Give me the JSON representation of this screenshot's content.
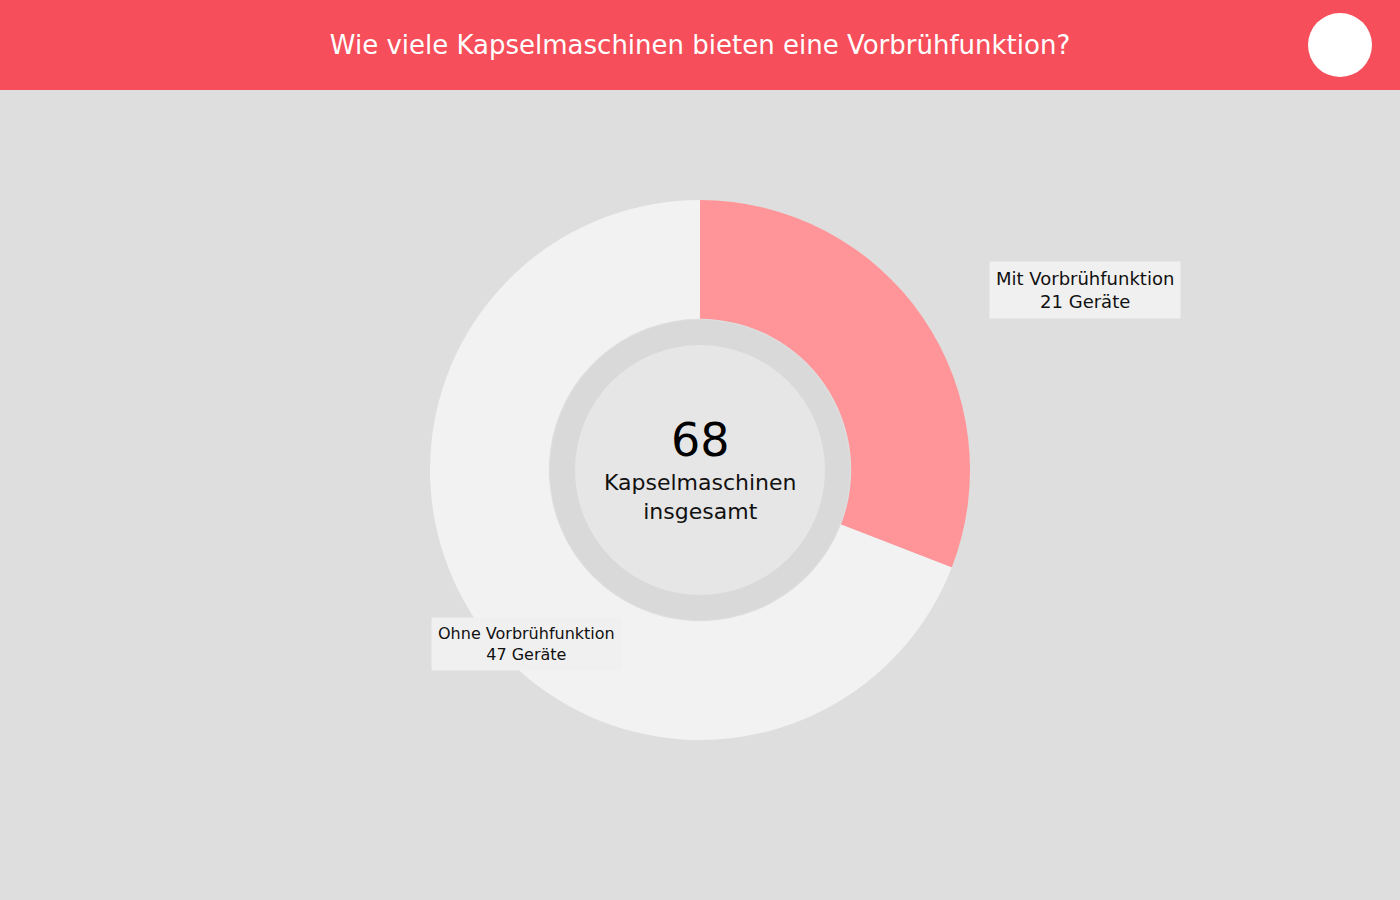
{
  "chart_data": {
    "type": "pie",
    "title": "Wie viele Kapselmaschinen bieten eine Vorbrühfunktion?",
    "categories": [
      "Mit Vorbrühfunktion",
      "Ohne Vorbrühfunktion"
    ],
    "values": [
      21,
      47
    ],
    "value_labels": [
      "21 Geräte",
      "47 Geräte"
    ],
    "colors": [
      "#ff9599",
      "#f2f2f2"
    ],
    "total": 68,
    "center_label": "Kapselmaschinen insgesamt"
  }
}
